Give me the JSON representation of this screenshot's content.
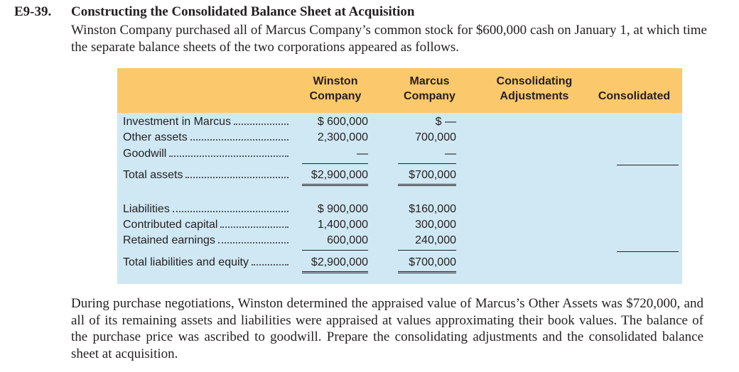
{
  "exercise": {
    "number": "E9-39.",
    "title": "Constructing the Consolidated Balance Sheet at Acquisition",
    "intro": "Winston Company purchased all of Marcus Company’s common stock for $600,000 cash on January 1, at which time the separate balance sheets of the two corporations appeared as follows.",
    "table": {
      "columns": [
        "Winston Company",
        "Marcus Company",
        "Consolidating Adjustments",
        "Consolidated"
      ],
      "rows": [
        {
          "label": "Investment in Marcus",
          "winston": "$ 600,000",
          "marcus": "$ —"
        },
        {
          "label": "Other assets",
          "winston": "2,300,000",
          "marcus": "700,000"
        },
        {
          "label": "Goodwill",
          "winston": "—",
          "marcus": "—"
        },
        {
          "label": "Total assets",
          "winston": "$2,900,000",
          "marcus": "$700,000"
        },
        {
          "label": "Liabilities",
          "winston": "$ 900,000",
          "marcus": "$160,000"
        },
        {
          "label": "Contributed capital",
          "winston": "1,400,000",
          "marcus": "300,000"
        },
        {
          "label": "Retained earnings",
          "winston": "600,000",
          "marcus": "240,000"
        },
        {
          "label": "Total liabilities and equity",
          "winston": "$2,900,000",
          "marcus": "$700,000"
        }
      ]
    },
    "closing": "During purchase negotiations, Winston determined the appraised value of Marcus’s Other Assets was $720,000, and all of its remaining assets and liabilities were appraised at values approximating their book values. The balance of the purchase price was ascribed to goodwill. Prepare the consolidating adjustments and the consolidated balance sheet at acquisition."
  }
}
